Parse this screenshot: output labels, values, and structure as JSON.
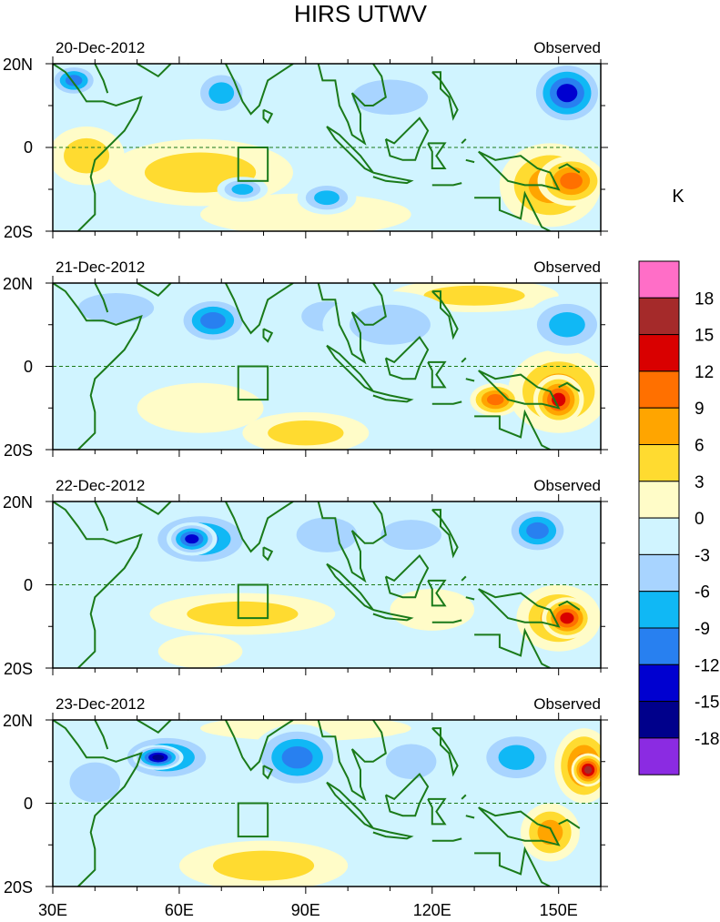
{
  "chart_data": {
    "type": "heatmap",
    "title": "HIRS UTWV",
    "variable_units": "K",
    "xlim": [
      30,
      160
    ],
    "ylim": [
      -20,
      20
    ],
    "x_ticks": [
      30,
      60,
      90,
      120,
      150
    ],
    "x_tick_labels": [
      "30E",
      "60E",
      "90E",
      "120E",
      "150E"
    ],
    "y_tick_labels": [
      "20N",
      "0",
      "20S"
    ],
    "equator_line": "dashed",
    "box_region": {
      "lon": [
        74,
        81
      ],
      "lat": [
        -8,
        0
      ]
    },
    "colorbar": {
      "label": "K",
      "levels": [
        18,
        15,
        12,
        9,
        6,
        3,
        0,
        -3,
        -6,
        -9,
        -12,
        -15,
        -18
      ],
      "colors": [
        "#ff6ec7",
        "#a52a2a",
        "#d90000",
        "#ff7000",
        "#ffa500",
        "#ffdb30",
        "#fffcc8",
        "#d0f4ff",
        "#a8d4ff",
        "#10b8f5",
        "#2880f0",
        "#0000d0",
        "#00008b",
        "#8b2be2"
      ]
    },
    "panels": [
      {
        "date": "20-Dec-2012",
        "label": "Observed",
        "blobs": [
          {
            "lon": 148,
            "lat": -9,
            "rx": 12,
            "ry": 10,
            "v": 7
          },
          {
            "lon": 153,
            "lat": -8,
            "rx": 8,
            "ry": 6,
            "v": 12
          },
          {
            "lon": 65,
            "lat": -6,
            "rx": 22,
            "ry": 8,
            "v": 4
          },
          {
            "lon": 38,
            "lat": -2,
            "rx": 9,
            "ry": 7,
            "v": 4
          },
          {
            "lon": 90,
            "lat": -16,
            "rx": 25,
            "ry": 5,
            "v": 3
          },
          {
            "lon": 70,
            "lat": 13,
            "rx": 7,
            "ry": 6,
            "v": -8
          },
          {
            "lon": 152,
            "lat": 13,
            "rx": 9,
            "ry": 8,
            "v": -13
          },
          {
            "lon": 35,
            "lat": 16,
            "rx": 6,
            "ry": 4,
            "v": -10
          },
          {
            "lon": 95,
            "lat": -12,
            "rx": 7,
            "ry": 4,
            "v": -8
          },
          {
            "lon": 75,
            "lat": -10,
            "rx": 6,
            "ry": 3,
            "v": -7
          },
          {
            "lon": 110,
            "lat": 12,
            "rx": 15,
            "ry": 7,
            "v": -4
          },
          {
            "lon": 88,
            "lat": 8,
            "rx": 14,
            "ry": 6,
            "v": -3
          }
        ]
      },
      {
        "date": "21-Dec-2012",
        "label": "Observed",
        "blobs": [
          {
            "lon": 150,
            "lat": -6,
            "rx": 12,
            "ry": 10,
            "v": 8
          },
          {
            "lon": 150,
            "lat": -8,
            "rx": 6,
            "ry": 6,
            "v": 14
          },
          {
            "lon": 135,
            "lat": -8,
            "rx": 6,
            "ry": 4,
            "v": 11
          },
          {
            "lon": 130,
            "lat": 17,
            "rx": 20,
            "ry": 4,
            "v": 4
          },
          {
            "lon": 65,
            "lat": -10,
            "rx": 15,
            "ry": 6,
            "v": 3
          },
          {
            "lon": 90,
            "lat": -16,
            "rx": 15,
            "ry": 5,
            "v": 4
          },
          {
            "lon": 68,
            "lat": 11,
            "rx": 9,
            "ry": 6,
            "v": -12
          },
          {
            "lon": 152,
            "lat": 10,
            "rx": 10,
            "ry": 7,
            "v": -8
          },
          {
            "lon": 45,
            "lat": 14,
            "rx": 15,
            "ry": 6,
            "v": -6
          },
          {
            "lon": 110,
            "lat": 10,
            "rx": 16,
            "ry": 8,
            "v": -5
          },
          {
            "lon": 95,
            "lat": 12,
            "rx": 10,
            "ry": 6,
            "v": -4
          }
        ]
      },
      {
        "date": "22-Dec-2012",
        "label": "Observed",
        "blobs": [
          {
            "lon": 150,
            "lat": -8,
            "rx": 10,
            "ry": 8,
            "v": 9
          },
          {
            "lon": 152,
            "lat": -8,
            "rx": 6,
            "ry": 5,
            "v": 13
          },
          {
            "lon": 75,
            "lat": -7,
            "rx": 22,
            "ry": 5,
            "v": 4
          },
          {
            "lon": 65,
            "lat": -16,
            "rx": 10,
            "ry": 4,
            "v": 3
          },
          {
            "lon": 120,
            "lat": -6,
            "rx": 10,
            "ry": 5,
            "v": 3
          },
          {
            "lon": 65,
            "lat": 11,
            "rx": 13,
            "ry": 7,
            "v": -10
          },
          {
            "lon": 63,
            "lat": 11,
            "rx": 6,
            "ry": 4,
            "v": -15
          },
          {
            "lon": 145,
            "lat": 13,
            "rx": 8,
            "ry": 6,
            "v": -10
          },
          {
            "lon": 95,
            "lat": 12,
            "rx": 12,
            "ry": 7,
            "v": -6
          },
          {
            "lon": 115,
            "lat": 12,
            "rx": 12,
            "ry": 6,
            "v": -4
          },
          {
            "lon": 40,
            "lat": 12,
            "rx": 10,
            "ry": 7,
            "v": -3
          }
        ]
      },
      {
        "date": "23-Dec-2012",
        "label": "Observed",
        "blobs": [
          {
            "lon": 156,
            "lat": 9,
            "rx": 7,
            "ry": 9,
            "v": 10
          },
          {
            "lon": 157,
            "lat": 8,
            "rx": 4,
            "ry": 4,
            "v": 16
          },
          {
            "lon": 148,
            "lat": -7,
            "rx": 7,
            "ry": 7,
            "v": 7
          },
          {
            "lon": 80,
            "lat": -15,
            "rx": 20,
            "ry": 6,
            "v": 4
          },
          {
            "lon": 90,
            "lat": 18,
            "rx": 25,
            "ry": 3,
            "v": 3
          },
          {
            "lon": 57,
            "lat": 11,
            "rx": 12,
            "ry": 6,
            "v": -12
          },
          {
            "lon": 55,
            "lat": 11,
            "rx": 6,
            "ry": 3,
            "v": -17
          },
          {
            "lon": 88,
            "lat": 11,
            "rx": 11,
            "ry": 8,
            "v": -12
          },
          {
            "lon": 140,
            "lat": 11,
            "rx": 10,
            "ry": 7,
            "v": -8
          },
          {
            "lon": 115,
            "lat": 10,
            "rx": 10,
            "ry": 7,
            "v": -6
          },
          {
            "lon": 40,
            "lat": 5,
            "rx": 10,
            "ry": 8,
            "v": -5
          }
        ]
      }
    ]
  }
}
